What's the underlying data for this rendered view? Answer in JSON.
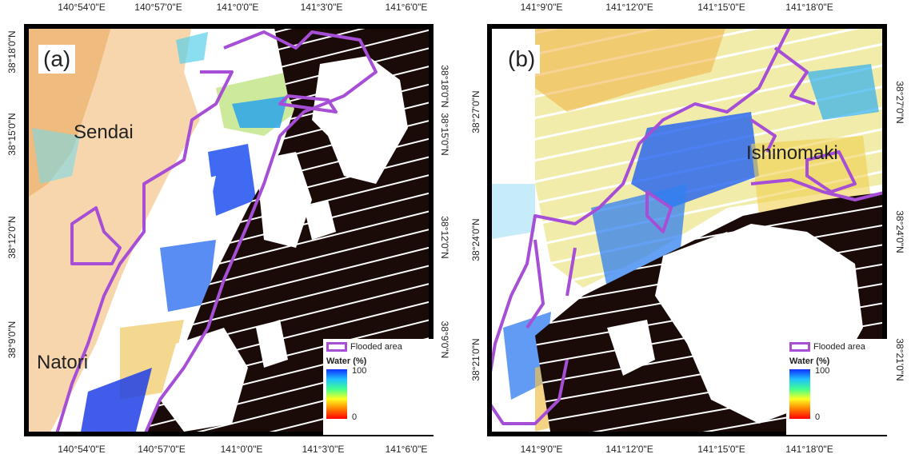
{
  "panels": [
    {
      "label": "(a)",
      "lon_ticks": [
        "140°54'0\"E",
        "140°57'0\"E",
        "141°0'0\"E",
        "141°3'0\"E",
        "141°6'0\"E"
      ],
      "lat_ticks": [
        "38°18'0\"N",
        "38°15'0\"N",
        "38°12'0\"N",
        "38°9'0\"N"
      ],
      "places": [
        "Sendai",
        "Natori"
      ]
    },
    {
      "label": "(b)",
      "lon_ticks": [
        "141°9'0\"E",
        "141°12'0\"E",
        "141°15'0\"E",
        "141°18'0\"E"
      ],
      "lat_ticks": [
        "38°27'0\"N",
        "38°24'0\"N",
        "38°21'0\"N"
      ],
      "places": [
        "Ishinomaki"
      ]
    }
  ],
  "legend": {
    "flooded_label": "Flooded area",
    "water_title": "Water (%)",
    "ramp_max": "100",
    "ramp_min": "0"
  },
  "colors": {
    "flood_outline": "#a64fd6",
    "masked": "#1a0a08",
    "ramp": [
      "#1030ff",
      "#20c0ff",
      "#40ff90",
      "#ffff20",
      "#ff8000",
      "#ff0000"
    ]
  }
}
